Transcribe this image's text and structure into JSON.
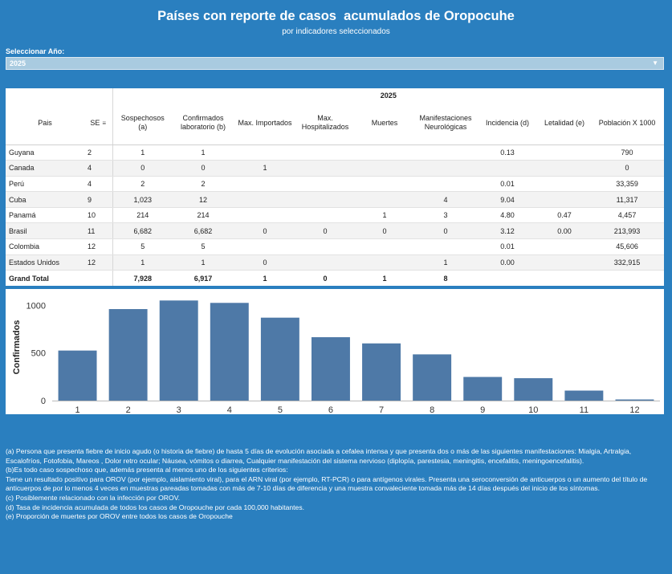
{
  "header": {
    "title": "Países con reporte de casos  acumulados de Oropocuhe",
    "subtitle": "por indicadores seleccionados"
  },
  "filter": {
    "label": "Seleccionar Año:",
    "selected": "2025"
  },
  "table": {
    "year": "2025",
    "columns": [
      "Pais",
      "SE",
      "Sospechosos (a)",
      "Confirmados laboratorio (b)",
      "Max. Importados",
      "Max. Hospitalizados",
      "Muertes",
      "Manifestaciones Neurológicas",
      "Incidencia (d)",
      "Letalidad (e)",
      "Población X 1000"
    ],
    "rows": [
      [
        "Guyana",
        "2",
        "1",
        "1",
        "",
        "",
        "",
        "",
        "0.13",
        "",
        "790"
      ],
      [
        "Canada",
        "4",
        "0",
        "0",
        "1",
        "",
        "",
        "",
        "",
        "",
        "0"
      ],
      [
        "Perú",
        "4",
        "2",
        "2",
        "",
        "",
        "",
        "",
        "0.01",
        "",
        "33,359"
      ],
      [
        "Cuba",
        "9",
        "1,023",
        "12",
        "",
        "",
        "",
        "4",
        "9.04",
        "",
        "11,317"
      ],
      [
        "Panamá",
        "10",
        "214",
        "214",
        "",
        "",
        "1",
        "3",
        "4.80",
        "0.47",
        "4,457"
      ],
      [
        "Brasil",
        "11",
        "6,682",
        "6,682",
        "0",
        "0",
        "0",
        "0",
        "3.12",
        "0.00",
        "213,993"
      ],
      [
        "Colombia",
        "12",
        "5",
        "5",
        "",
        "",
        "",
        "",
        "0.01",
        "",
        "45,606"
      ],
      [
        "Estados Unidos",
        "12",
        "1",
        "1",
        "0",
        "",
        "",
        "1",
        "0.00",
        "",
        "332,915"
      ]
    ],
    "total": [
      "Grand Total",
      "",
      "7,928",
      "6,917",
      "1",
      "0",
      "1",
      "8",
      "",
      "",
      ""
    ]
  },
  "chart_data": {
    "type": "bar",
    "categories": [
      "1",
      "2",
      "3",
      "4",
      "5",
      "6",
      "7",
      "8",
      "9",
      "10",
      "11",
      "12"
    ],
    "values": [
      525,
      960,
      1050,
      1025,
      870,
      665,
      600,
      485,
      248,
      235,
      105,
      12
    ],
    "ylabel": "Confirmados",
    "xlabel": "",
    "yticks": [
      0,
      500,
      1000
    ],
    "ylim": [
      0,
      1120
    ],
    "grid": false,
    "bar_color": "#4e79a7"
  },
  "notes": [
    "(a) Persona que presenta fiebre de inicio agudo (o historia de fiebre) de hasta 5 días de evolución asociada a cefalea intensa y que presenta dos o más de las siguientes manifestaciones: Mialgia, Artralgia, Escalofríos, Fotofobia, Mareos , Dolor retro ocular; Náusea, vómitos o diarrea, Cualquier manifestación del sistema nervioso (diplopía, parestesia, meningitis, encefalitis, meningoencefalitis).",
    "(b)Es todo caso sospechoso que, además presenta al menos uno de los siguientes criterios:",
    "Tiene un resultado positivo para OROV (por ejemplo, aislamiento viral), para el ARN viral (por ejemplo, RT-PCR) o para antígenos virales.  Presenta una seroconversión de anticuerpos o un aumento del título de anticuerpos de por lo menos 4 veces en muestras pareadas tomadas con más de 7-10 días de diferencia y una muestra convaleciente tomada más de 14 días después del inicio de los síntomas.",
    "(c) Posiblemente relacionado con la infección por OROV.",
    "(d) Tasa de incidencia acumulada de todos los casos de Oropouche por cada 100,000 habitantes.",
    "(e) Proporción de muertes por OROV entre todos los casos de Oropouche"
  ],
  "colors": {
    "background": "#2a7fbf",
    "bar": "#4e79a7"
  }
}
